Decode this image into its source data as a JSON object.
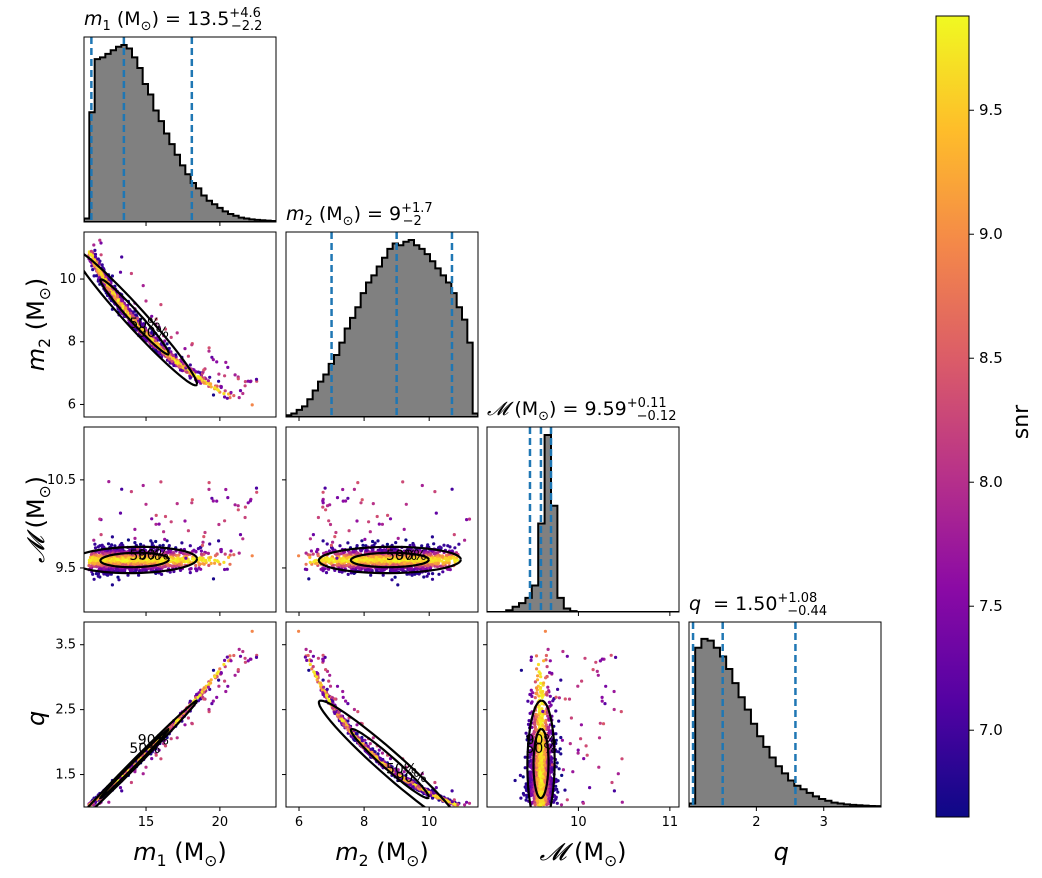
{
  "chart_data": {
    "type": "scatter",
    "subtype": "corner-plot",
    "parameters": [
      {
        "key": "m1",
        "symbol": "m",
        "sub": "1",
        "unit": "(M",
        "unitsub": "⊙",
        "unitclose": ")",
        "title_prefix": " = 13.5",
        "title_sup": "+4.6",
        "title_sub": "−2.2",
        "range": [
          10.8,
          23.8
        ],
        "ticks": [
          "15",
          "20"
        ],
        "tick_values": [
          15,
          20
        ],
        "median": 13.5,
        "lower": 11.3,
        "upper": 18.1,
        "hist": [
          0.02,
          0.62,
          0.92,
          0.93,
          0.95,
          0.97,
          0.99,
          1.0,
          0.98,
          0.93,
          0.87,
          0.78,
          0.72,
          0.63,
          0.57,
          0.5,
          0.44,
          0.38,
          0.32,
          0.27,
          0.22,
          0.19,
          0.15,
          0.12,
          0.1,
          0.08,
          0.06,
          0.045,
          0.035,
          0.025,
          0.02,
          0.015,
          0.012,
          0.01,
          0.008,
          0.006
        ]
      },
      {
        "key": "m2",
        "symbol": "m",
        "sub": "2",
        "unit": "(M",
        "unitsub": "⊙",
        "unitclose": ")",
        "title_prefix": " = 9",
        "title_sup": "+1.7",
        "title_sub": "−2",
        "range": [
          5.6,
          11.5
        ],
        "ticks": [
          "6",
          "8",
          "10"
        ],
        "tick_values": [
          6,
          8,
          10
        ],
        "median": 9.0,
        "lower": 7.0,
        "upper": 10.7,
        "hist": [
          0.01,
          0.02,
          0.04,
          0.06,
          0.1,
          0.15,
          0.2,
          0.24,
          0.3,
          0.35,
          0.42,
          0.5,
          0.56,
          0.62,
          0.7,
          0.76,
          0.8,
          0.85,
          0.9,
          0.95,
          0.98,
          0.97,
          0.99,
          1.0,
          0.97,
          0.95,
          0.92,
          0.88,
          0.84,
          0.8,
          0.76,
          0.7,
          0.62,
          0.55,
          0.42,
          0.02
        ]
      },
      {
        "key": "mc",
        "symbol": "𝓜",
        "sub": "",
        "unit": "(M",
        "unitsub": "⊙",
        "unitclose": ")",
        "title_prefix": " = 9.59",
        "title_sup": "+0.11",
        "title_sub": "−0.12",
        "range": [
          9.0,
          11.1
        ],
        "ticks": [
          "10",
          "11"
        ],
        "tick_values": [
          10,
          11
        ],
        "median": 9.59,
        "lower": 9.47,
        "upper": 9.7,
        "hist": [
          0.0,
          0.0,
          0.0,
          0.01,
          0.03,
          0.05,
          0.08,
          0.15,
          0.5,
          1.0,
          0.6,
          0.08,
          0.02,
          0.005,
          0.0,
          0.0,
          0.0,
          0.0,
          0.0,
          0.0,
          0.0,
          0.0,
          0.0,
          0.0,
          0.0,
          0.0,
          0.0,
          0.0,
          0.0,
          0.0
        ]
      },
      {
        "key": "q",
        "symbol": "q",
        "sub": "",
        "unit": "",
        "unitsub": "",
        "unitclose": "",
        "title_prefix": " = 1.50",
        "title_sup": "+1.08",
        "title_sub": "−0.44",
        "range": [
          1.0,
          3.85
        ],
        "ticks": [
          "2",
          "3"
        ],
        "tick_values": [
          2,
          3
        ],
        "median": 1.5,
        "lower": 1.06,
        "upper": 2.58,
        "hist": [
          0.02,
          0.9,
          0.95,
          0.94,
          0.9,
          0.85,
          0.78,
          0.7,
          0.62,
          0.55,
          0.47,
          0.4,
          0.34,
          0.28,
          0.23,
          0.19,
          0.15,
          0.12,
          0.1,
          0.08,
          0.06,
          0.045,
          0.035,
          0.025,
          0.02,
          0.015,
          0.012,
          0.01,
          0.008,
          0.006,
          0.005
        ]
      }
    ],
    "y_ticks": {
      "m2": [
        "6",
        "8",
        "10"
      ],
      "m2_values": [
        6,
        8,
        10
      ],
      "mc": [
        "9.5",
        "10.5"
      ],
      "mc_values": [
        9.5,
        10.5
      ],
      "q": [
        "1.5",
        "2.5",
        "3.5"
      ],
      "q_values": [
        1.5,
        2.5,
        3.5
      ]
    },
    "contour_labels": [
      "50%",
      "90%"
    ],
    "colorbar": {
      "label": "snr",
      "range": [
        6.65,
        9.88
      ],
      "ticks": [
        "7.0",
        "7.5",
        "8.0",
        "8.5",
        "9.0",
        "9.5"
      ],
      "tick_values": [
        7.0,
        7.5,
        8.0,
        8.5,
        9.0,
        9.5
      ],
      "colormap": "plasma",
      "stops": [
        "#0d0887",
        "#5302a3",
        "#8b0aa5",
        "#b83289",
        "#db5c68",
        "#f48849",
        "#febd2a",
        "#f0f921"
      ]
    },
    "colors": {
      "hist_fill": "#808080",
      "quantile_line": "#1f77b4",
      "contour": "#000000"
    }
  }
}
